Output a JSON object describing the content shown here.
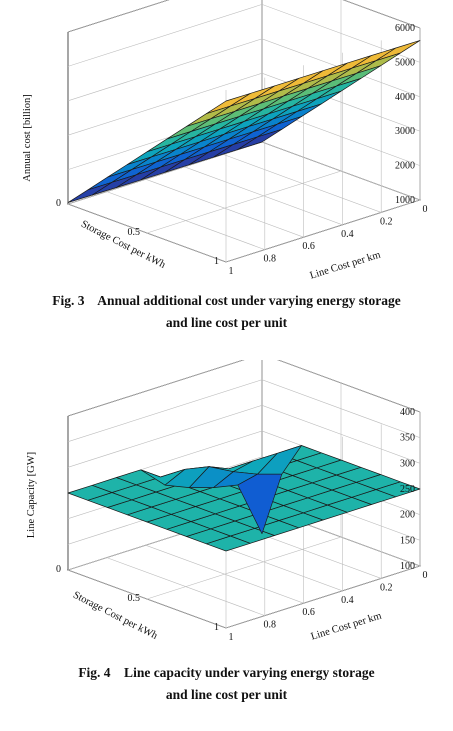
{
  "figures": [
    {
      "caption_line1": "Fig. 3    Annual additional cost under varying energy storage",
      "caption_line2": "and line cost per unit",
      "chart_data": {
        "type": "surface",
        "zlabel": "Annual cost [billion]",
        "xlabel": "Storage Cost per kWh",
        "ylabel": "Line Cost per km",
        "xlim": [
          0,
          1
        ],
        "ylim": [
          0,
          1
        ],
        "zlim": [
          1000,
          6000
        ],
        "x_ticks": [
          "0",
          "0.5",
          "1"
        ],
        "y_ticks": [
          "0",
          "0.2",
          "0.4",
          "0.6",
          "0.8",
          "1"
        ],
        "z_ticks": [
          "1000",
          "2000",
          "3000",
          "4000",
          "5000",
          "6000"
        ],
        "storage_cost": [
          0.0,
          0.125,
          0.25,
          0.375,
          0.5,
          0.625,
          0.75,
          0.875,
          1.0
        ],
        "line_cost": [
          0.0,
          0.125,
          0.25,
          0.375,
          0.5,
          0.625,
          0.75,
          0.875,
          1.0
        ],
        "z": [
          [
            1000,
            1005,
            1010,
            1015,
            1020,
            1025,
            1030,
            1035,
            1040
          ],
          [
            1580,
            1585,
            1590,
            1595,
            1600,
            1605,
            1610,
            1615,
            1620
          ],
          [
            2160,
            2165,
            2170,
            2175,
            2180,
            2185,
            2190,
            2195,
            2200
          ],
          [
            2740,
            2745,
            2750,
            2755,
            2760,
            2765,
            2770,
            2775,
            2780
          ],
          [
            3320,
            3325,
            3330,
            3335,
            3340,
            3345,
            3350,
            3355,
            3360
          ],
          [
            3900,
            3905,
            3910,
            3915,
            3920,
            3925,
            3930,
            3935,
            3940
          ],
          [
            4480,
            4485,
            4490,
            4495,
            4500,
            4505,
            4510,
            4515,
            4520
          ],
          [
            5060,
            5065,
            5070,
            5075,
            5080,
            5085,
            5090,
            5095,
            5100
          ],
          [
            5640,
            5645,
            5650,
            5655,
            5660,
            5665,
            5670,
            5675,
            5680
          ]
        ],
        "colormap": "parula"
      }
    },
    {
      "caption_line1": "Fig. 4    Line capacity under varying energy storage",
      "caption_line2": "and line cost per unit",
      "chart_data": {
        "type": "surface",
        "zlabel": "Line Capacity [GW]",
        "xlabel": "Storage Cost per kWh",
        "ylabel": "Line Cost per km",
        "xlim": [
          0,
          1
        ],
        "ylim": [
          0,
          1
        ],
        "zlim": [
          100,
          400
        ],
        "x_ticks": [
          "0",
          "0.5",
          "1"
        ],
        "y_ticks": [
          "0",
          "0.2",
          "0.4",
          "0.6",
          "0.8",
          "1"
        ],
        "z_ticks": [
          "100",
          "150",
          "200",
          "250",
          "300",
          "350",
          "400"
        ],
        "storage_cost": [
          0.0,
          0.125,
          0.25,
          0.375,
          0.5,
          0.625,
          0.75,
          0.875,
          1.0
        ],
        "line_cost": [
          0.0,
          0.125,
          0.25,
          0.375,
          0.5,
          0.625,
          0.75,
          0.875,
          1.0
        ],
        "z": [
          [
            50,
            160,
            170,
            185,
            205,
            250,
            250,
            250,
            250
          ],
          [
            180,
            195,
            215,
            240,
            250,
            250,
            250,
            250,
            250
          ],
          [
            250,
            250,
            250,
            250,
            250,
            250,
            250,
            250,
            250
          ],
          [
            250,
            250,
            250,
            250,
            250,
            250,
            250,
            250,
            250
          ],
          [
            250,
            250,
            250,
            250,
            250,
            250,
            250,
            250,
            250
          ],
          [
            250,
            250,
            250,
            250,
            250,
            250,
            250,
            250,
            250
          ],
          [
            250,
            250,
            250,
            250,
            250,
            250,
            250,
            250,
            250
          ],
          [
            250,
            250,
            250,
            250,
            250,
            250,
            250,
            250,
            250
          ],
          [
            250,
            250,
            250,
            250,
            250,
            250,
            250,
            250,
            250
          ]
        ],
        "colormap": "parula"
      }
    }
  ],
  "colors": {
    "axis": "#222222",
    "grid": "#bdbdbd",
    "edge": "#1a1a1a"
  }
}
